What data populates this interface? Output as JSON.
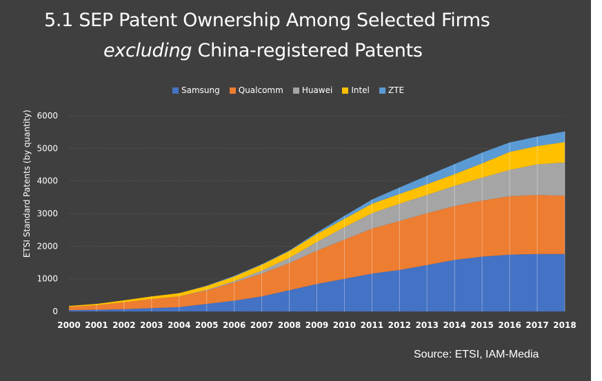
{
  "title": {
    "line1": "5.1 SEP Patent Ownership Among Selected Firms",
    "line2_em": "excluding",
    "line2_rest": " China-registered Patents"
  },
  "source": "Source: ETSI, IAM-Media",
  "colors": {
    "background": "#3f3f3f",
    "Samsung": "#4472c4",
    "Qualcomm": "#ed7d31",
    "Huawei": "#a5a5a5",
    "Intel": "#ffc000",
    "ZTE": "#5b9bd5"
  },
  "chart_data": {
    "type": "area",
    "stacked": true,
    "x": [
      "2000",
      "2001",
      "2002",
      "2003",
      "2004",
      "2005",
      "2006",
      "2007",
      "2008",
      "2009",
      "2010",
      "2011",
      "2012",
      "2013",
      "2014",
      "2015",
      "2016",
      "2017",
      "2018"
    ],
    "series": [
      {
        "name": "Samsung",
        "values": [
          40,
          50,
          70,
          100,
          130,
          230,
          330,
          460,
          650,
          840,
          1000,
          1160,
          1270,
          1420,
          1580,
          1680,
          1740,
          1760,
          1760
        ]
      },
      {
        "name": "Qualcomm",
        "values": [
          100,
          140,
          210,
          280,
          330,
          410,
          560,
          700,
          830,
          1020,
          1200,
          1380,
          1500,
          1590,
          1650,
          1720,
          1790,
          1810,
          1790
        ]
      },
      {
        "name": "Huawei",
        "values": [
          0,
          0,
          0,
          0,
          0,
          20,
          40,
          90,
          160,
          270,
          380,
          470,
          530,
          560,
          620,
          700,
          810,
          940,
          1020
        ]
      },
      {
        "name": "Intel",
        "values": [
          30,
          40,
          60,
          80,
          100,
          120,
          140,
          180,
          210,
          240,
          260,
          290,
          300,
          330,
          360,
          440,
          550,
          560,
          620
        ]
      },
      {
        "name": "ZTE",
        "values": [
          0,
          0,
          0,
          0,
          0,
          10,
          20,
          20,
          20,
          50,
          90,
          130,
          200,
          260,
          310,
          330,
          290,
          290,
          330
        ]
      }
    ],
    "ylabel": "ETSI Standard Patents (by quantity)",
    "xlabel": "",
    "ylim": [
      0,
      6000
    ],
    "yticks": [
      0,
      1000,
      2000,
      3000,
      4000,
      5000,
      6000
    ],
    "grid": true,
    "legend": "top"
  }
}
